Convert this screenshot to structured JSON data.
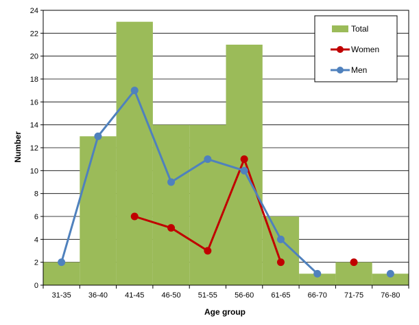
{
  "chart_data": {
    "type": "bar",
    "categories": [
      "31-35",
      "36-40",
      "41-45",
      "46-50",
      "51-55",
      "56-60",
      "61-65",
      "66-70",
      "71-75",
      "76-80"
    ],
    "series": [
      {
        "name": "Total",
        "type": "bar",
        "color": "#9BBB59",
        "values": [
          2,
          13,
          23,
          14,
          14,
          21,
          6,
          1,
          2,
          1
        ]
      },
      {
        "name": "Women",
        "type": "line",
        "color": "#C00000",
        "values": [
          null,
          null,
          6,
          5,
          3,
          11,
          2,
          null,
          2,
          null
        ]
      },
      {
        "name": "Men",
        "type": "line",
        "color": "#4F81BD",
        "values": [
          2,
          13,
          17,
          9,
          11,
          10,
          4,
          1,
          null,
          1
        ]
      }
    ],
    "xlabel": "Age group",
    "ylabel": "Number",
    "ylim": [
      0,
      24
    ],
    "yticks": [
      0,
      2,
      4,
      6,
      8,
      10,
      12,
      14,
      16,
      18,
      20,
      22,
      24
    ],
    "grid": true,
    "legend_position": "top-right"
  }
}
